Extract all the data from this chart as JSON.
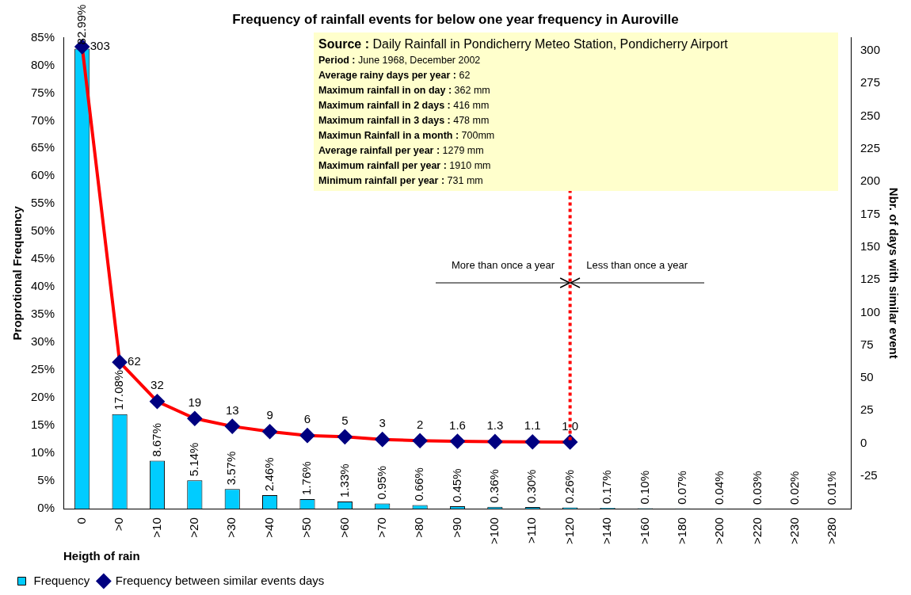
{
  "chart_data": {
    "type": "bar",
    "title": "Frequency of rainfall events for below one year frequency in Auroville",
    "xlabel": "Heigth of rain",
    "ylabel": "Proprotional Frequency",
    "y2label": "Nbr. of days with similar event",
    "categories": [
      "0",
      ">0",
      ">10",
      ">20",
      ">30",
      ">40",
      ">50",
      ">60",
      ">70",
      ">80",
      ">90",
      ">100",
      ">110",
      ">120",
      ">140",
      ">160",
      ">180",
      ">200",
      ">220",
      ">230",
      ">280"
    ],
    "series": [
      {
        "name": "Frequency",
        "color": "#00ccff",
        "values": [
          82.99,
          17.08,
          8.67,
          5.14,
          3.57,
          2.46,
          1.76,
          1.33,
          0.95,
          0.66,
          0.45,
          0.36,
          0.3,
          0.26,
          0.17,
          0.1,
          0.07,
          0.04,
          0.03,
          0.02,
          0.01
        ],
        "value_labels": [
          "82.99%",
          "17.08%",
          "8.67%",
          "5.14%",
          "3.57%",
          "2.46%",
          "1.76%",
          "1.33%",
          "0.95%",
          "0.66%",
          "0.45%",
          "0.36%",
          "0.30%",
          "0.26%",
          "0.17%",
          "0.10%",
          "0.07%",
          "0.04%",
          "0.03%",
          "0.02%",
          "0.01%"
        ]
      },
      {
        "name": "Frequency between similar events days",
        "type": "line",
        "axis": "y2",
        "color": "#ff0000",
        "values": [
          303,
          62,
          32,
          19,
          13,
          9,
          6,
          5,
          3,
          2,
          1.6,
          1.3,
          1.1,
          1.0,
          null,
          null,
          null,
          null,
          null,
          null,
          null
        ],
        "value_labels": [
          "303",
          "62",
          "32",
          "19",
          "13",
          "9",
          "6",
          "5",
          "3",
          "2",
          "1.6",
          "1.3",
          "1.1",
          "1.0",
          null,
          null,
          null,
          null,
          null,
          null,
          null
        ]
      }
    ],
    "ylim": [
      0,
      85
    ],
    "yticks": [
      {
        "value": 0,
        "label": "0%"
      },
      {
        "value": 5,
        "label": "5%"
      },
      {
        "value": 10,
        "label": "10%"
      },
      {
        "value": 15,
        "label": "15%"
      },
      {
        "value": 20,
        "label": "20%"
      },
      {
        "value": 25,
        "label": "25%"
      },
      {
        "value": 30,
        "label": "30%"
      },
      {
        "value": 35,
        "label": "35%"
      },
      {
        "value": 40,
        "label": "40%"
      },
      {
        "value": 45,
        "label": "45%"
      },
      {
        "value": 50,
        "label": "50%"
      },
      {
        "value": 55,
        "label": "55%"
      },
      {
        "value": 60,
        "label": "60%"
      },
      {
        "value": 65,
        "label": "65%"
      },
      {
        "value": 70,
        "label": "70%"
      },
      {
        "value": 75,
        "label": "75%"
      },
      {
        "value": 80,
        "label": "80%"
      },
      {
        "value": 85,
        "label": "85%"
      }
    ],
    "y2lim": [
      -50,
      310
    ],
    "y2ticks": [
      -25,
      0,
      25,
      50,
      75,
      100,
      125,
      150,
      175,
      200,
      225,
      250,
      275,
      300
    ],
    "marker": "diamond",
    "grid": false,
    "legend": "bottom",
    "ref_lines": [
      {
        "axis": "x",
        "value": ">120",
        "color": "#ff0000",
        "line_style": "dotted"
      }
    ],
    "annotations": [
      "Source :  Daily Rainfall in Pondicherry Meteo Station, Pondicherry Airport",
      "Period : June 1968, December 2002",
      "Average rainy days per year : 62",
      "Maximum rainfall in on day  : 362 mm",
      "Maximum rainfall in 2 days :  416 mm",
      "Maximum rainfall in 3 days : 478 mm",
      "Maximun Rainfall in a month : 700mm",
      "Average rainfall per year :  1279 mm",
      "Maximum rainfall per year :  1910 mm",
      "Minimum rainfall per year : 731 mm",
      "More than once a year",
      "Less than once a year"
    ]
  }
}
